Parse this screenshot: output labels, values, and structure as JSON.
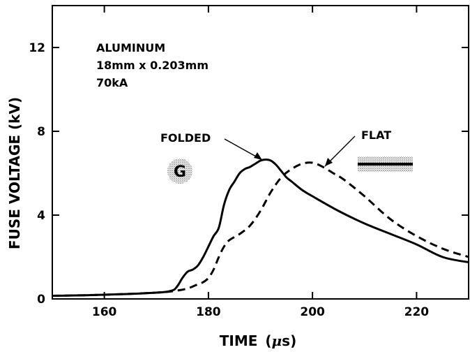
{
  "chart_data": {
    "type": "line",
    "title": "",
    "xlabel": "TIME",
    "xlabel_unit_mu": "μ",
    "xlabel_unit_rest": "s",
    "ylabel": "FUSE VOLTAGE (kV)",
    "xlim": [
      150,
      230
    ],
    "ylim": [
      0,
      14
    ],
    "x_ticks": [
      160,
      180,
      200,
      220
    ],
    "y_ticks": [
      0,
      4,
      8,
      12
    ],
    "grid": false,
    "legend": "none",
    "annotations": {
      "line1": "ALUMINUM",
      "line2": "18mm x 0.203mm",
      "line3": "70kA",
      "folded_label": "FOLDED",
      "flat_label": "FLAT",
      "folded_icon_letter": "G"
    },
    "series": [
      {
        "name": "FOLDED",
        "style": "solid",
        "x": [
          150,
          160,
          170,
          173,
          174,
          175,
          176,
          177,
          178,
          179,
          180,
          181,
          182,
          183,
          184,
          185,
          186,
          187,
          188,
          189,
          190,
          191,
          192,
          193,
          194,
          195,
          196,
          198,
          200,
          205,
          210,
          215,
          220,
          225,
          230
        ],
        "y": [
          0.15,
          0.2,
          0.3,
          0.4,
          0.6,
          1.0,
          1.3,
          1.4,
          1.6,
          2.0,
          2.5,
          3.0,
          3.4,
          4.5,
          5.2,
          5.6,
          6.0,
          6.2,
          6.3,
          6.45,
          6.6,
          6.65,
          6.6,
          6.4,
          6.1,
          5.8,
          5.6,
          5.2,
          4.9,
          4.2,
          3.6,
          3.1,
          2.6,
          2.0,
          1.75
        ]
      },
      {
        "name": "FLAT",
        "style": "dashed",
        "x": [
          150,
          160,
          170,
          174,
          176,
          178,
          179,
          180,
          181,
          182,
          183,
          184,
          186,
          188,
          190,
          192,
          194,
          196,
          198,
          200,
          202,
          204,
          206,
          210,
          215,
          220,
          225,
          230
        ],
        "y": [
          0.15,
          0.2,
          0.3,
          0.4,
          0.5,
          0.7,
          0.8,
          1.0,
          1.4,
          2.0,
          2.5,
          2.8,
          3.1,
          3.5,
          4.2,
          5.1,
          5.8,
          6.2,
          6.45,
          6.5,
          6.3,
          6.0,
          5.7,
          4.9,
          3.8,
          3.0,
          2.4,
          2.0
        ]
      }
    ]
  }
}
